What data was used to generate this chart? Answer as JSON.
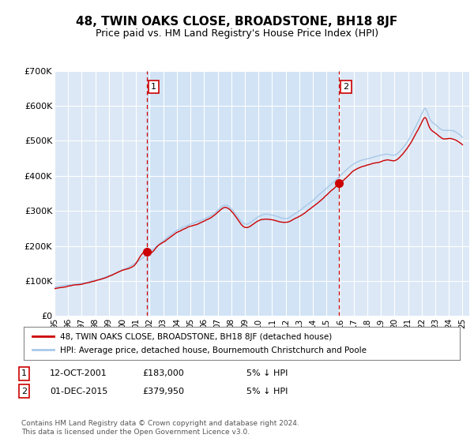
{
  "title": "48, TWIN OAKS CLOSE, BROADSTONE, BH18 8JF",
  "subtitle": "Price paid vs. HM Land Registry's House Price Index (HPI)",
  "legend_line1": "48, TWIN OAKS CLOSE, BROADSTONE, BH18 8JF (detached house)",
  "legend_line2": "HPI: Average price, detached house, Bournemouth Christchurch and Poole",
  "annotation1_date": "12-OCT-2001",
  "annotation1_price": "£183,000",
  "annotation1_hpi": "5% ↓ HPI",
  "annotation2_date": "01-DEC-2015",
  "annotation2_price": "£379,950",
  "annotation2_hpi": "5% ↓ HPI",
  "footnote1": "Contains HM Land Registry data © Crown copyright and database right 2024.",
  "footnote2": "This data is licensed under the Open Government Licence v3.0.",
  "ylim": [
    0,
    700000
  ],
  "yticks": [
    0,
    100000,
    200000,
    300000,
    400000,
    500000,
    600000,
    700000
  ],
  "ytick_labels": [
    "£0",
    "£100K",
    "£200K",
    "£300K",
    "£400K",
    "£500K",
    "£600K",
    "£700K"
  ],
  "plot_bg_color": "#dce8f5",
  "line_color_hpi": "#a8c8e8",
  "line_color_price": "#cc0000",
  "vline_color": "#cc0000",
  "marker1_x": 2001.79,
  "marker1_y": 183000,
  "marker2_x": 2015.92,
  "marker2_y": 379950,
  "xmin": 1995.0,
  "xmax": 2025.5
}
